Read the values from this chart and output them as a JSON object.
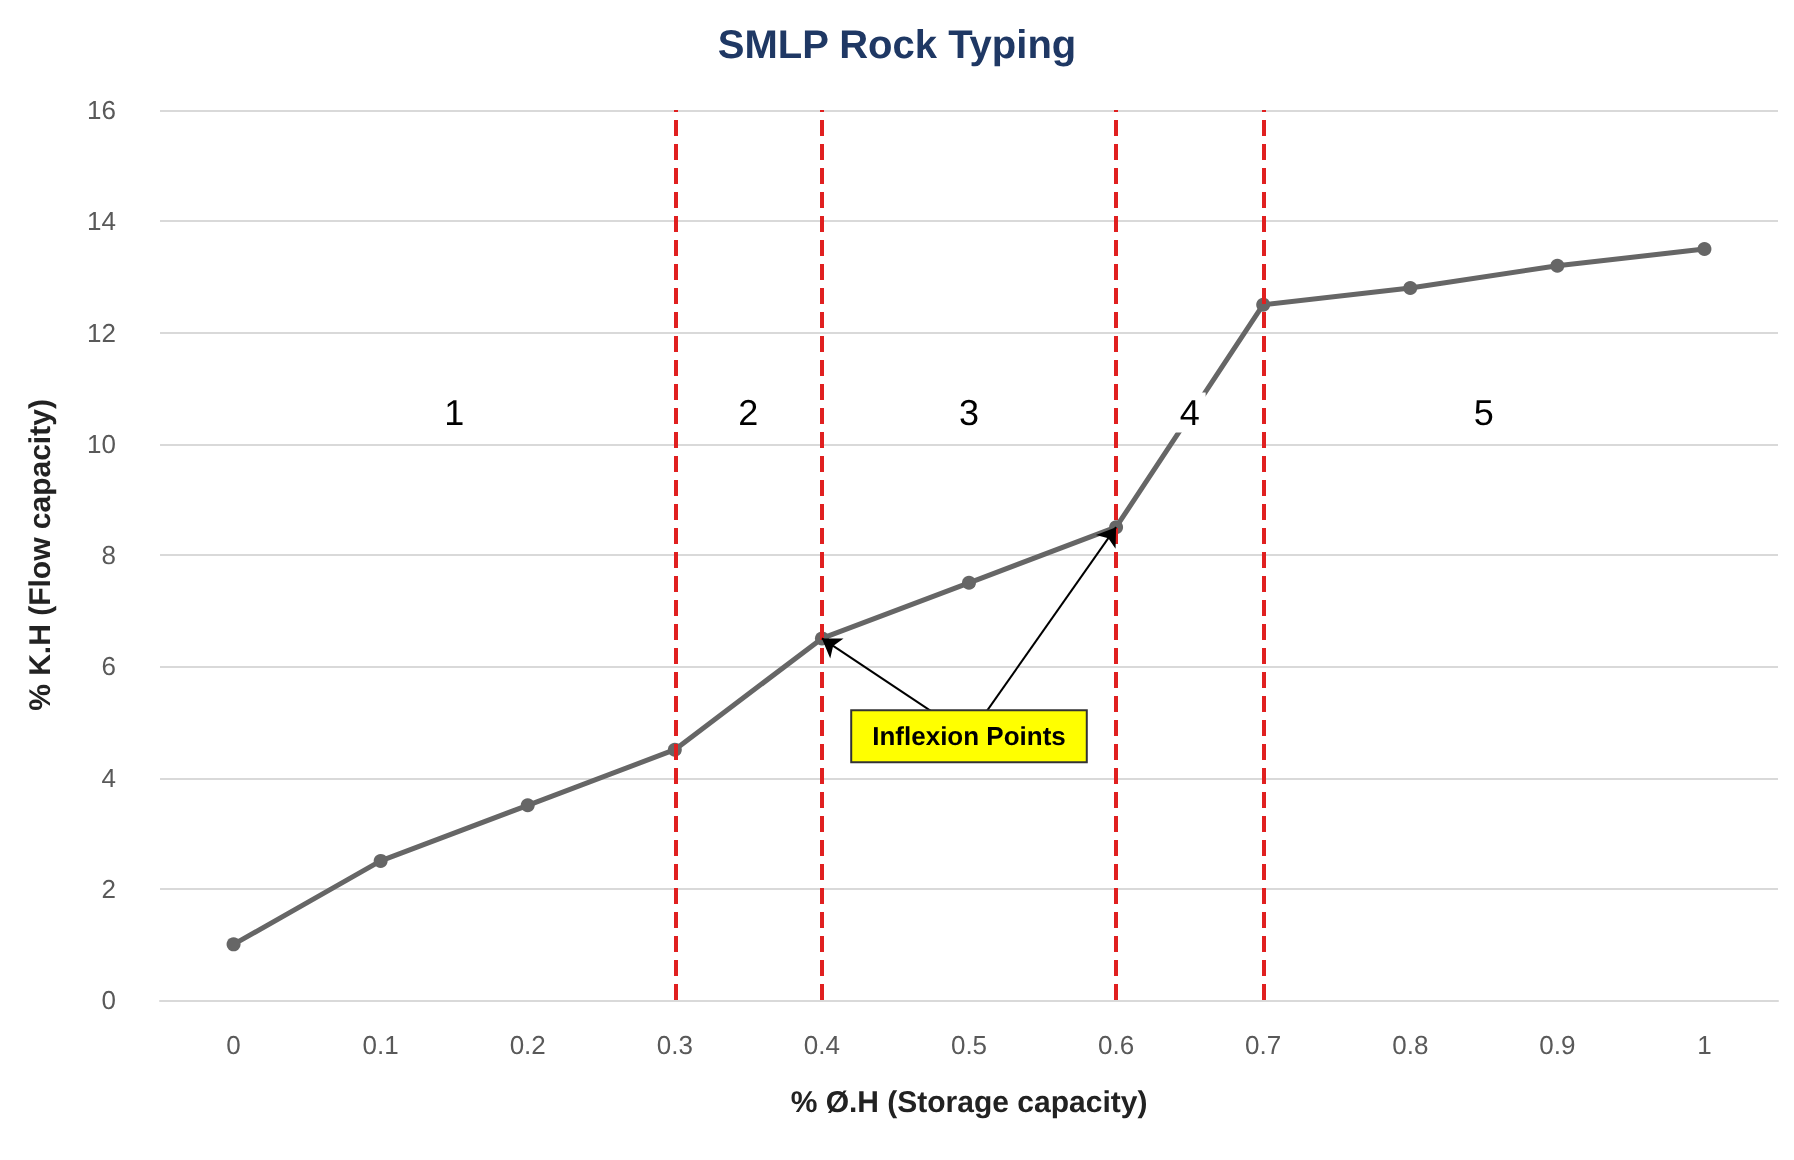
{
  "chart_data": {
    "type": "line",
    "title": "SMLP Rock Typing",
    "xlabel": "% Ø.H (Storage capacity)",
    "ylabel": "% K.H (Flow capacity)",
    "x": [
      0,
      0.1,
      0.2,
      0.3,
      0.4,
      0.5,
      0.6,
      0.7,
      0.8,
      0.9,
      1
    ],
    "series": [
      {
        "color": "#666666",
        "values": [
          1,
          2.5,
          3.5,
          4.5,
          6.5,
          7.5,
          8.5,
          12.5,
          12.8,
          13.2,
          13.5
        ]
      }
    ],
    "xlim": [
      -0.05,
      1.05
    ],
    "xticks": [
      0,
      0.1,
      0.2,
      0.3,
      0.4,
      0.5,
      0.6,
      0.7,
      0.8,
      0.9,
      1
    ],
    "ylim": [
      0,
      16
    ],
    "yticks": [
      0,
      2,
      4,
      6,
      8,
      10,
      12,
      14,
      16
    ],
    "grid": "y",
    "marker": "circle",
    "line_style": "solid",
    "ref_lines": [
      {
        "axis": "x",
        "value": 0.3,
        "color": "#e02020",
        "line_style": "dashed"
      },
      {
        "axis": "x",
        "value": 0.4,
        "color": "#e02020",
        "line_style": "dashed"
      },
      {
        "axis": "x",
        "value": 0.6,
        "color": "#e02020",
        "line_style": "dashed"
      },
      {
        "axis": "x",
        "value": 0.7,
        "color": "#e02020",
        "line_style": "dashed"
      }
    ],
    "annotations": [
      "1",
      "2",
      "3",
      "4",
      "5",
      {
        "text": "Inflexion Points",
        "x": 0.4,
        "y": 6.5
      }
    ]
  }
}
